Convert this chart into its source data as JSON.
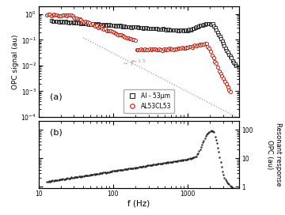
{
  "title_a": "(a)",
  "title_b": "(b)",
  "xlabel": "f (Hz)",
  "ylabel_a": "OPC signal (au)",
  "ylabel_b": "Resonant response\nOPC (au)",
  "xlim": [
    10,
    5000
  ],
  "ylim_a": [
    0.0001,
    2.0
  ],
  "ylim_b": [
    0.9,
    200
  ],
  "legend_labels": [
    "Al - 53μm",
    "AL53CL53"
  ],
  "black_color": "#222222",
  "red_color": "#cc1100",
  "dotted_color": "#999999"
}
